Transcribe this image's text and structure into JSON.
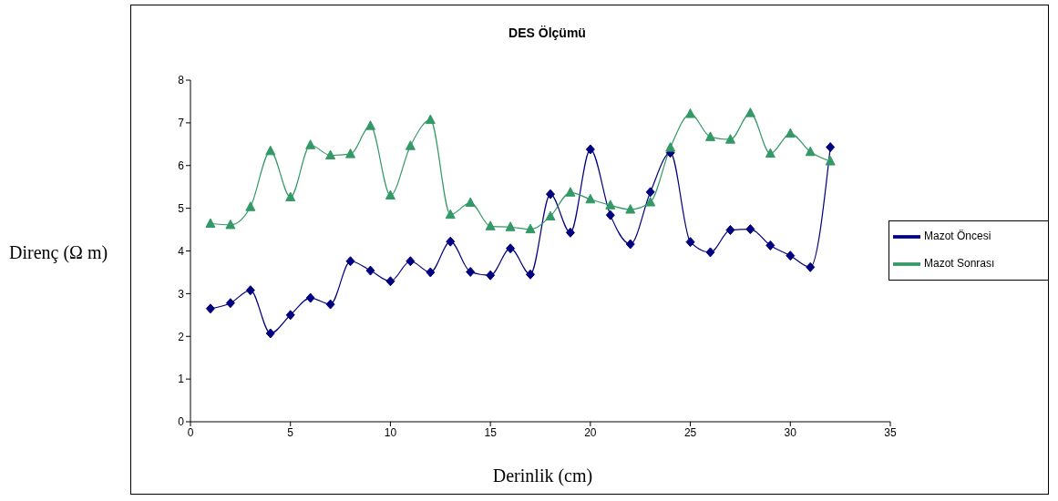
{
  "chart_data": {
    "type": "line",
    "title": "DES Ölçümü",
    "xlabel": "Derinlik (cm)",
    "ylabel": "Direnç (Ω m)",
    "x": [
      1,
      2,
      3,
      4,
      5,
      6,
      7,
      8,
      9,
      10,
      11,
      12,
      13,
      14,
      15,
      16,
      17,
      18,
      19,
      20,
      21,
      22,
      23,
      24,
      25,
      26,
      27,
      28,
      29,
      30,
      31,
      32
    ],
    "series": [
      {
        "name": "Mazot Öncesi",
        "color": "#000080",
        "marker": "diamond",
        "values": [
          2.65,
          2.78,
          3.08,
          2.07,
          2.5,
          2.9,
          2.75,
          3.76,
          3.54,
          3.29,
          3.76,
          3.5,
          4.22,
          3.51,
          3.43,
          4.06,
          3.45,
          5.33,
          4.43,
          6.38,
          4.84,
          4.16,
          5.38,
          6.3,
          4.21,
          3.97,
          4.49,
          4.51,
          4.13,
          3.89,
          3.62,
          6.43
        ]
      },
      {
        "name": "Mazot Sonrası",
        "color": "#339966",
        "marker": "triangle",
        "values": [
          4.64,
          4.61,
          5.03,
          6.34,
          5.26,
          6.48,
          6.24,
          6.27,
          6.93,
          5.3,
          6.46,
          7.07,
          4.85,
          5.13,
          4.58,
          4.56,
          4.51,
          4.81,
          5.37,
          5.21,
          5.07,
          4.97,
          5.14,
          6.42,
          7.21,
          6.67,
          6.61,
          7.23,
          6.28,
          6.75,
          6.32,
          6.1
        ]
      }
    ],
    "xlim": [
      0,
      35
    ],
    "xticks": [
      0,
      5,
      10,
      15,
      20,
      25,
      30,
      35
    ],
    "ylim": [
      0,
      8
    ],
    "yticks": [
      0,
      1,
      2,
      3,
      4,
      5,
      6,
      7,
      8
    ],
    "grid": false,
    "legend": "right",
    "line_style": "solid"
  }
}
